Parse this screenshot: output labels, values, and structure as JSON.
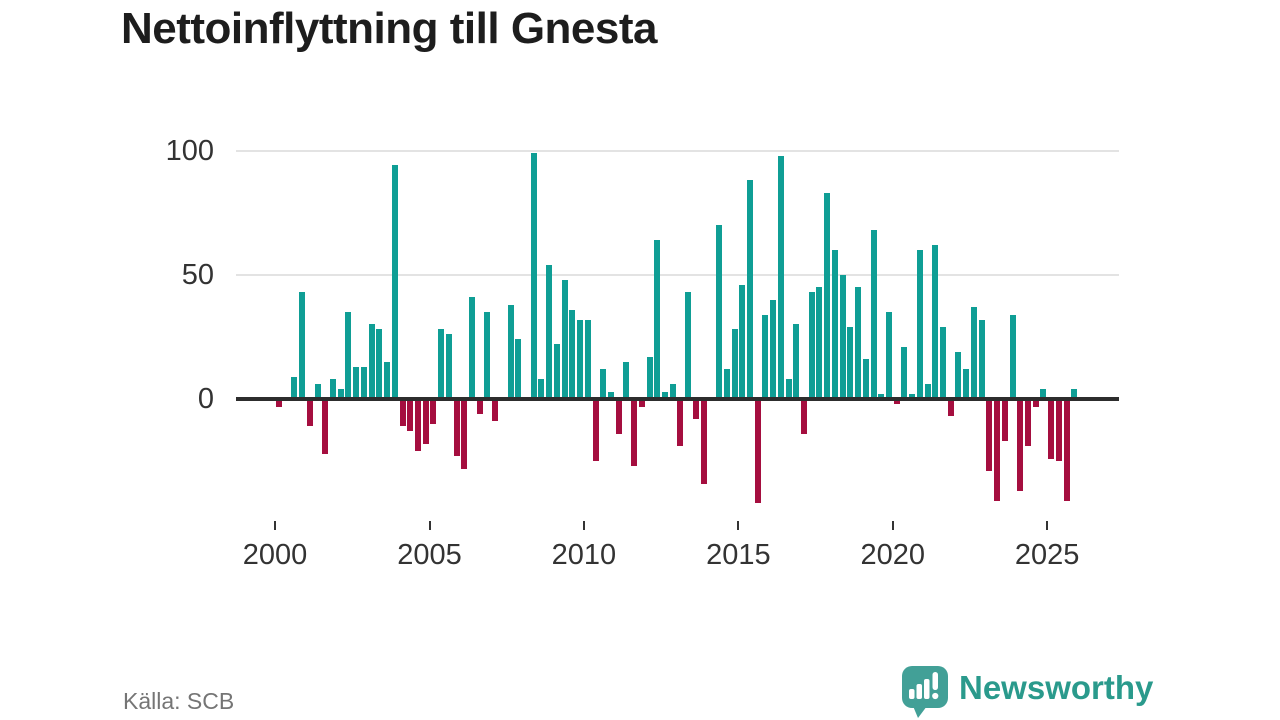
{
  "title": "Nettoinflyttning till Gnesta",
  "source": "Källa: SCB",
  "branding": {
    "logo_text": "Newsworthy",
    "logo_icon": "speech-bubble-with-bar-chart-and-exclamation"
  },
  "colors": {
    "positive": "#0f9e95",
    "negative": "#a50e3f",
    "grid": "#e3e3e3",
    "axis_line": "#2d2d2d",
    "axis_text": "#333333",
    "title_text": "#1d1d1d",
    "source_text": "#757575",
    "brand_text": "#2a9a8c",
    "brand_bubble": "#42a097"
  },
  "chart_data": {
    "type": "bar",
    "title": "Nettoinflyttning till Gnesta",
    "source": "Källa: SCB",
    "frequency": "quarterly",
    "start_year": 2000,
    "start_quarter": 1,
    "xlabel": "",
    "ylabel": "",
    "ylim": [
      -45,
      105
    ],
    "grid": "horizontal",
    "legend": "none",
    "y_ticks": [
      100,
      50,
      0
    ],
    "x_tick_labels": [
      "2000",
      "2005",
      "2010",
      "2015",
      "2020",
      "2025"
    ],
    "x_tick_years": [
      2000,
      2005,
      2010,
      2015,
      2020,
      2025
    ],
    "values": [
      -3,
      1,
      9,
      43,
      -11,
      6,
      -22,
      8,
      4,
      35,
      13,
      13,
      30,
      28,
      15,
      94,
      -11,
      -13,
      -21,
      -18,
      -10,
      28,
      26,
      -23,
      -28,
      41,
      -6,
      35,
      -9,
      0,
      38,
      24,
      1,
      99,
      8,
      54,
      22,
      48,
      36,
      32,
      32,
      -25,
      12,
      3,
      -14,
      15,
      -27,
      -3,
      17,
      64,
      3,
      6,
      -19,
      43,
      -8,
      -34,
      1,
      70,
      12,
      28,
      46,
      88,
      -42,
      34,
      40,
      98,
      8,
      30,
      -14,
      43,
      45,
      83,
      60,
      50,
      29,
      45,
      16,
      68,
      2,
      35,
      -2,
      21,
      2,
      60,
      6,
      62,
      29,
      -7,
      19,
      12,
      37,
      32,
      -29,
      -41,
      -17,
      34,
      -37,
      -19,
      -3,
      4,
      -24,
      -25,
      -41,
      4
    ]
  }
}
